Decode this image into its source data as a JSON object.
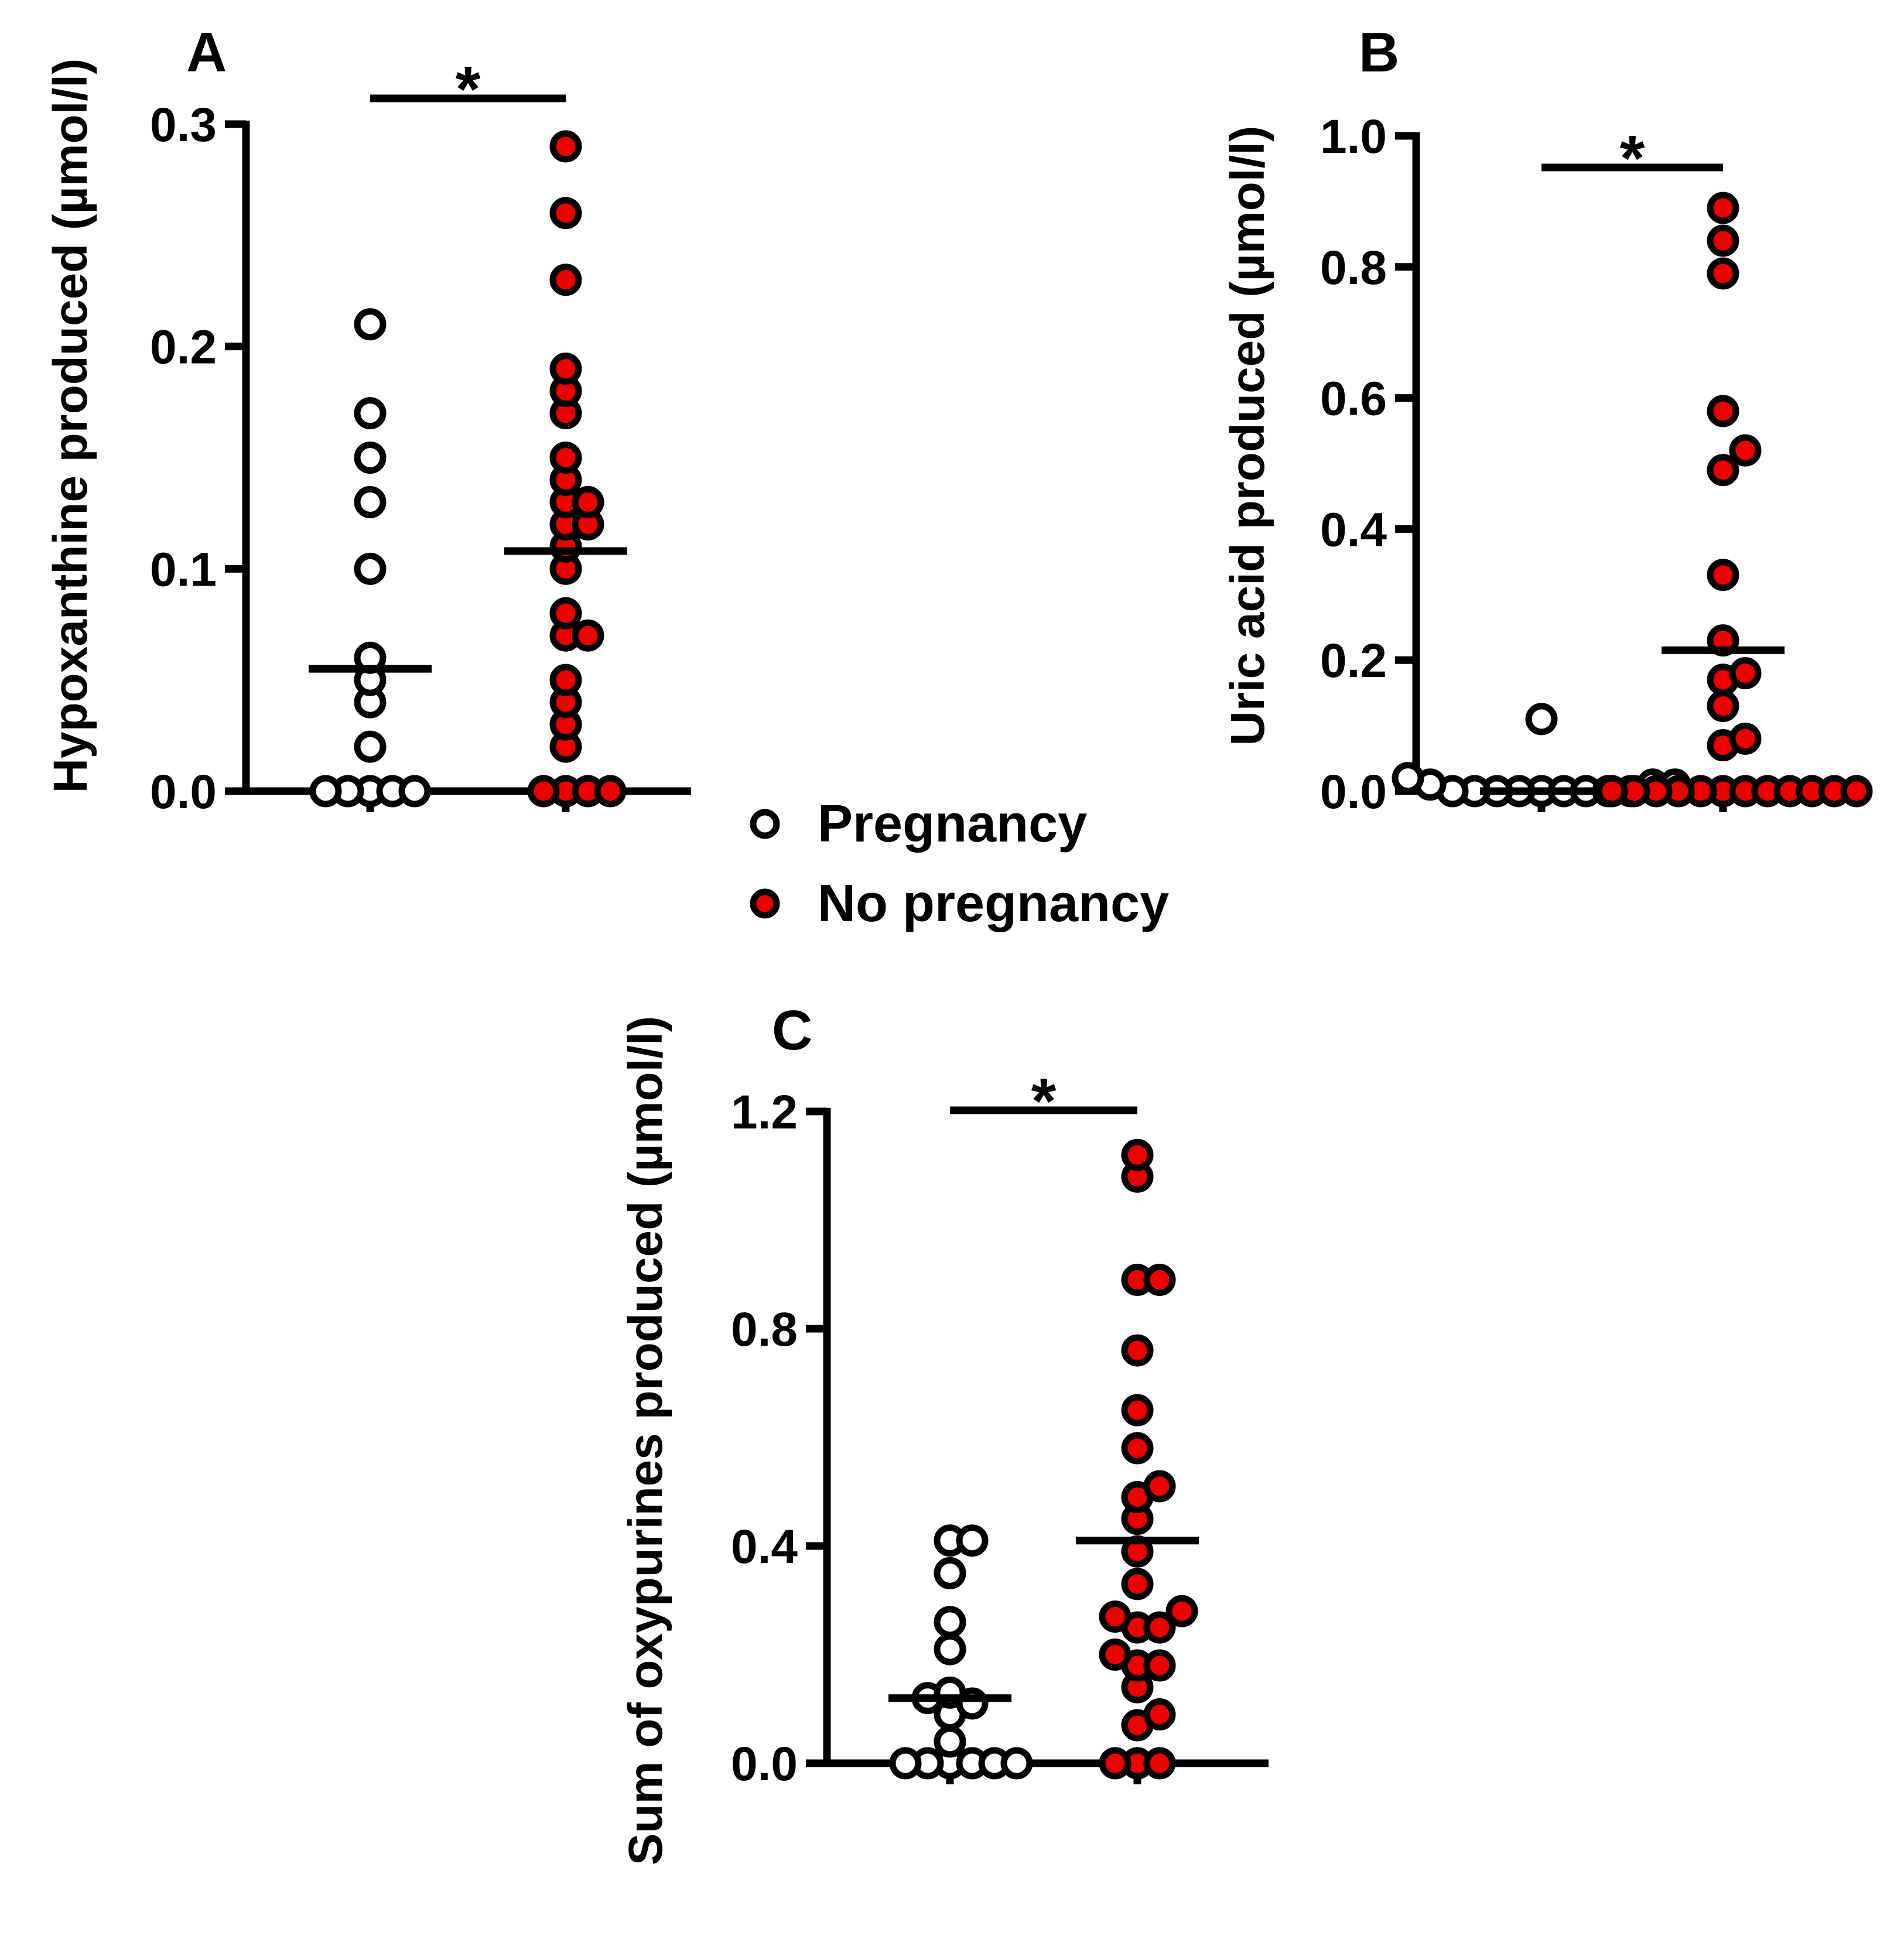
{
  "colors": {
    "pregnancy": "#ffffff",
    "no_pregnancy": "#ee0000",
    "stroke": "#000000"
  },
  "legend": {
    "items": [
      {
        "label": "Pregnancy",
        "color": "#ffffff",
        "icon": "open-circle-icon"
      },
      {
        "label": "No pregnancy",
        "color": "#ee0000",
        "icon": "filled-red-circle-icon"
      }
    ]
  },
  "chart_data": [
    {
      "panel": "A",
      "type": "scatter",
      "ylabel": "Hypoxanthine produced (µmol/l)",
      "ylim": [
        0,
        0.3
      ],
      "yticks": [
        "0.0",
        "0.1",
        "0.2",
        "0.3"
      ],
      "ytick_values": [
        0,
        0.1,
        0.2,
        0.3
      ],
      "significance": "*",
      "series": [
        {
          "name": "Pregnancy",
          "mean": 0.055,
          "values": [
            0.21,
            0.17,
            0.15,
            0.13,
            0.1,
            0.06,
            0.05,
            0.04,
            0.02,
            0,
            0,
            0,
            0,
            0
          ]
        },
        {
          "name": "No pregnancy",
          "mean": 0.108,
          "values": [
            0.29,
            0.26,
            0.23,
            0.19,
            0.18,
            0.17,
            0.15,
            0.14,
            0.13,
            0.13,
            0.12,
            0.12,
            0.11,
            0.1,
            0.08,
            0.07,
            0.07,
            0.05,
            0.04,
            0.03,
            0.02,
            0,
            0,
            0,
            0
          ]
        }
      ]
    },
    {
      "panel": "B",
      "type": "scatter",
      "ylabel": "Uric acid produced (µmol/l)",
      "ylim": [
        0,
        1.0
      ],
      "yticks": [
        "0.0",
        "0.2",
        "0.4",
        "0.6",
        "0.8",
        "1.0"
      ],
      "ytick_values": [
        0,
        0.2,
        0.4,
        0.6,
        0.8,
        1.0
      ],
      "significance": "*",
      "series": [
        {
          "name": "Pregnancy",
          "mean": 0.0,
          "values": [
            0.11,
            0.02,
            0.01,
            0.01,
            0.01,
            0,
            0,
            0,
            0,
            0,
            0,
            0,
            0,
            0
          ]
        },
        {
          "name": "No pregnancy",
          "mean": 0.215,
          "values": [
            0.89,
            0.84,
            0.79,
            0.58,
            0.52,
            0.49,
            0.33,
            0.23,
            0.18,
            0.17,
            0.13,
            0.08,
            0.07,
            0,
            0,
            0,
            0,
            0,
            0,
            0,
            0,
            0,
            0,
            0,
            0
          ]
        }
      ]
    },
    {
      "panel": "C",
      "type": "scatter",
      "ylabel": "Sum of oxypurines produced (µmol/l)",
      "ylim": [
        0,
        1.2
      ],
      "yticks": [
        "0.0",
        "0.4",
        "0.8",
        "1.2"
      ],
      "ytick_values": [
        0,
        0.4,
        0.8,
        1.2
      ],
      "significance": "*",
      "series": [
        {
          "name": "Pregnancy",
          "mean": 0.12,
          "values": [
            0.41,
            0.41,
            0.35,
            0.26,
            0.21,
            0.13,
            0.12,
            0.11,
            0.09,
            0.04,
            0,
            0,
            0,
            0,
            0,
            0
          ]
        },
        {
          "name": "No pregnancy",
          "mean": 0.41,
          "values": [
            1.12,
            1.08,
            0.89,
            0.89,
            0.76,
            0.65,
            0.58,
            0.51,
            0.49,
            0.45,
            0.39,
            0.33,
            0.28,
            0.27,
            0.25,
            0.25,
            0.2,
            0.18,
            0.18,
            0.14,
            0.09,
            0.07,
            0,
            0,
            0
          ]
        }
      ]
    }
  ]
}
